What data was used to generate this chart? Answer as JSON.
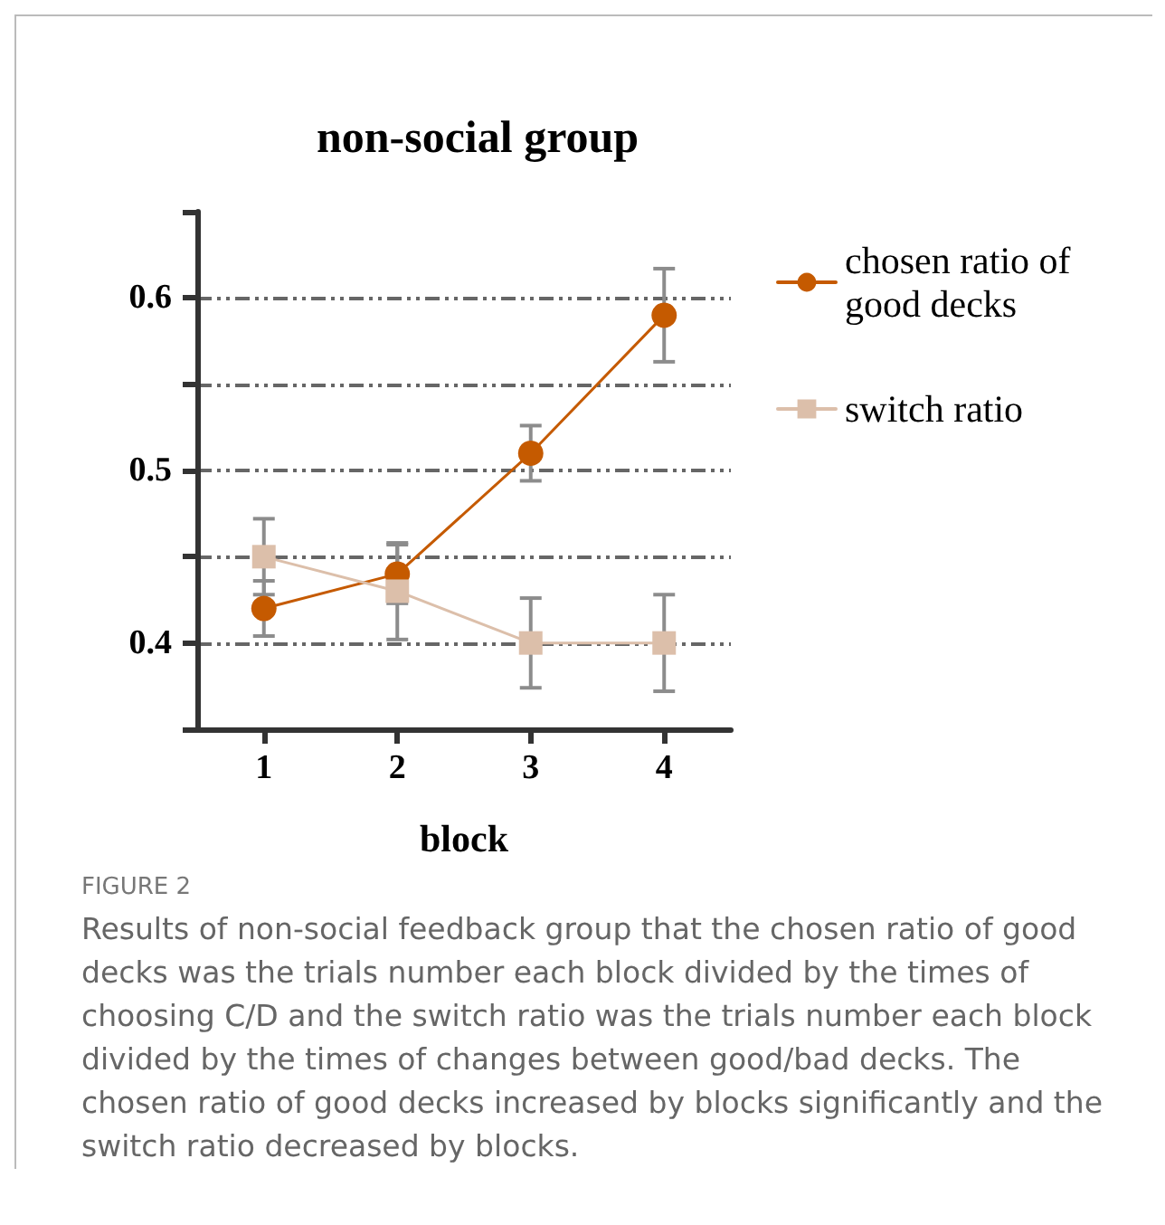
{
  "chart_data": {
    "type": "line",
    "title": "non-social group",
    "xlabel": "block",
    "categories": [
      "1",
      "2",
      "3",
      "4"
    ],
    "series": [
      {
        "name": "chosen ratio of good decks",
        "color": "#c55a00",
        "marker": "circle",
        "values": [
          0.42,
          0.44,
          0.51,
          0.59
        ],
        "errors": [
          0.016,
          0.017,
          0.016,
          0.027
        ]
      },
      {
        "name": "switch ratio",
        "color": "#dcbfaa",
        "marker": "square",
        "values": [
          0.45,
          0.43,
          0.4,
          0.4
        ],
        "errors": [
          0.022,
          0.028,
          0.026,
          0.028
        ]
      }
    ],
    "ylim": [
      0.35,
      0.65
    ],
    "yticks": [
      {
        "value": 0.35,
        "label": null
      },
      0.4,
      {
        "value": 0.45,
        "label": null
      },
      0.5,
      {
        "value": 0.55,
        "label": null
      },
      0.6,
      {
        "value": 0.65,
        "label": null
      }
    ],
    "grid": "y",
    "legend": "top right",
    "line_style": "solid",
    "annotations": [
      "FIGURE 2",
      "Results of non-social feedback group that the chosen ratio of good decks was the trials number each block divided by the times of choosing C/D and the switch ratio was the trials number each block divided by the times of changes between good/bad decks. The chosen ratio of good decks increased by blocks significantly and the switch ratio decreased by blocks."
    ]
  }
}
